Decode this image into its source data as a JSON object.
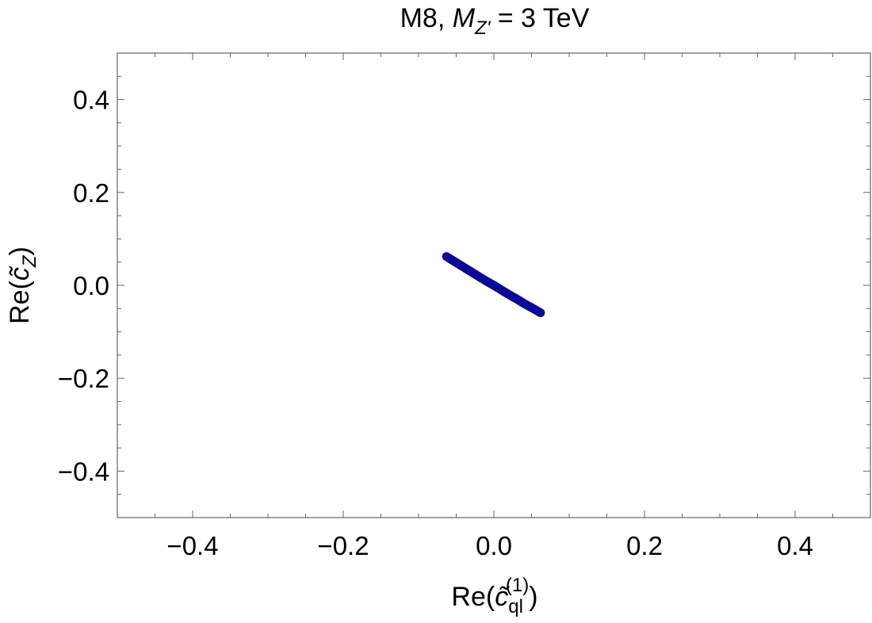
{
  "chart_data": {
    "type": "scatter",
    "title": {
      "prefix": "M8, ",
      "symbol": "M",
      "symbol_sub": "Z'",
      "suffix": " = 3 TeV"
    },
    "xlabel": {
      "prefix": "Re(",
      "symbol": "c̃",
      "sub": "ql",
      "sup": "(1)",
      "suffix": ")"
    },
    "ylabel": {
      "prefix": "Re(",
      "symbol": "c̃",
      "sub": "Z",
      "suffix": ")"
    },
    "xlim": [
      -0.5,
      0.5
    ],
    "ylim": [
      -0.5,
      0.5
    ],
    "xticks": [
      -0.4,
      -0.2,
      0.0,
      0.2,
      0.4
    ],
    "yticks": [
      -0.4,
      -0.2,
      0.0,
      0.2,
      0.4
    ],
    "xtick_labels": [
      "−0.4",
      "−0.2",
      "0.0",
      "0.2",
      "0.4"
    ],
    "ytick_labels": [
      "−0.4",
      "−0.2",
      "0.0",
      "0.2",
      "0.4"
    ],
    "minor_tick_step": 0.05,
    "grid": false,
    "color": "#0a0a96",
    "points": [
      {
        "x": -0.063,
        "y": 0.062
      },
      {
        "x": -0.05,
        "y": 0.049
      },
      {
        "x": -0.04,
        "y": 0.039
      },
      {
        "x": -0.03,
        "y": 0.029
      },
      {
        "x": -0.02,
        "y": 0.019
      },
      {
        "x": -0.01,
        "y": 0.009
      },
      {
        "x": 0.0,
        "y": 0.0
      },
      {
        "x": 0.01,
        "y": -0.01
      },
      {
        "x": 0.02,
        "y": -0.02
      },
      {
        "x": 0.03,
        "y": -0.029
      },
      {
        "x": 0.04,
        "y": -0.039
      },
      {
        "x": 0.05,
        "y": -0.048
      },
      {
        "x": 0.062,
        "y": -0.059
      }
    ]
  }
}
